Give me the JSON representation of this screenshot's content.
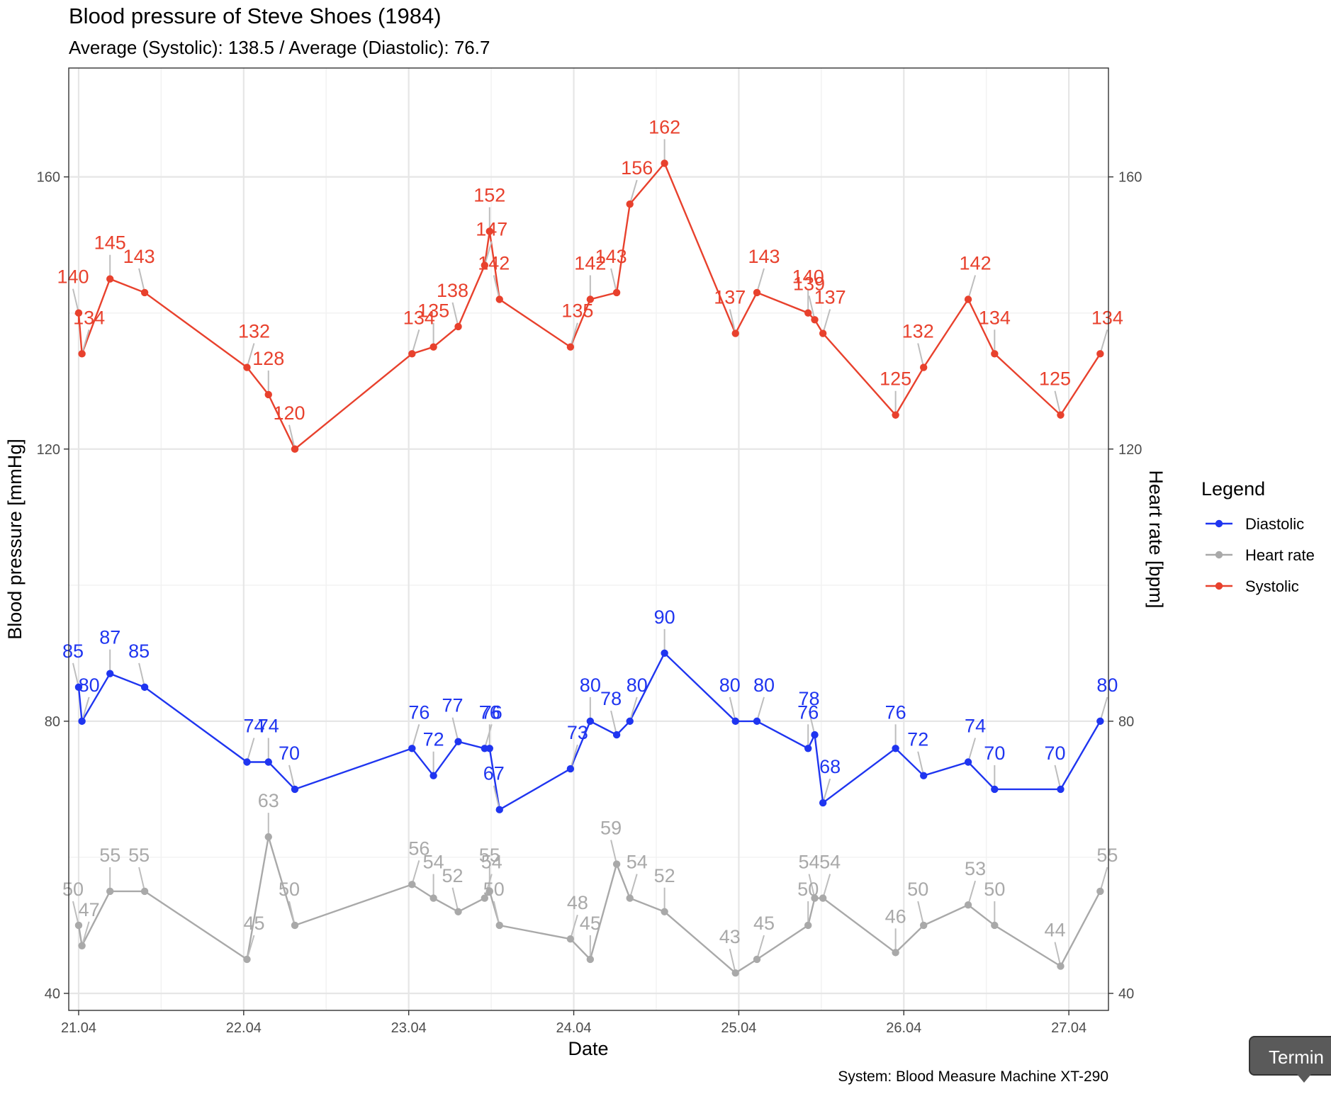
{
  "tooltip": {
    "label": "Termin"
  },
  "chart_data": {
    "type": "line",
    "title": "Blood pressure of Steve Shoes (1984)",
    "subtitle": "Average (Systolic): 138.5  / Average (Diastolic): 76.7",
    "xlabel": "Date",
    "ylabel": "Blood pressure [mmHg]",
    "ylabel_right": "Heart rate [bpm]",
    "caption": "System: Blood Measure Machine XT-290",
    "xlim": [
      20.94,
      27.24
    ],
    "ylim": [
      37.5,
      176
    ],
    "x_ticks": [
      {
        "value": 21,
        "label": "21.04"
      },
      {
        "value": 22,
        "label": "22.04"
      },
      {
        "value": 23,
        "label": "23.04"
      },
      {
        "value": 24,
        "label": "24.04"
      },
      {
        "value": 25,
        "label": "25.04"
      },
      {
        "value": 26,
        "label": "26.04"
      },
      {
        "value": 27,
        "label": "27.04"
      }
    ],
    "y_ticks": [
      40,
      80,
      120,
      160
    ],
    "grid": true,
    "legend": {
      "title": "Legend",
      "position": "right",
      "entries": [
        {
          "name": "Diastolic",
          "color": "#1f35f0"
        },
        {
          "name": "Heart rate",
          "color": "#a9a9a9"
        },
        {
          "name": "Systolic",
          "color": "#e8412d"
        }
      ]
    },
    "x_note": "x values are dates in April 1984 expressed as day of month with fractional time of day",
    "series": [
      {
        "name": "Systolic",
        "color": "#e8412d",
        "points": [
          {
            "x": 21.0,
            "y": 140
          },
          {
            "x": 21.02,
            "y": 134
          },
          {
            "x": 21.19,
            "y": 145
          },
          {
            "x": 21.4,
            "y": 143
          },
          {
            "x": 22.02,
            "y": 132
          },
          {
            "x": 22.15,
            "y": 128
          },
          {
            "x": 22.31,
            "y": 120
          },
          {
            "x": 23.02,
            "y": 134
          },
          {
            "x": 23.15,
            "y": 135
          },
          {
            "x": 23.3,
            "y": 138
          },
          {
            "x": 23.46,
            "y": 147
          },
          {
            "x": 23.49,
            "y": 152
          },
          {
            "x": 23.55,
            "y": 142
          },
          {
            "x": 23.98,
            "y": 135
          },
          {
            "x": 24.1,
            "y": 142
          },
          {
            "x": 24.26,
            "y": 143
          },
          {
            "x": 24.34,
            "y": 156
          },
          {
            "x": 24.55,
            "y": 162
          },
          {
            "x": 24.98,
            "y": 137
          },
          {
            "x": 25.11,
            "y": 143
          },
          {
            "x": 25.42,
            "y": 140
          },
          {
            "x": 25.46,
            "y": 139
          },
          {
            "x": 25.51,
            "y": 137
          },
          {
            "x": 25.95,
            "y": 125
          },
          {
            "x": 26.12,
            "y": 132
          },
          {
            "x": 26.39,
            "y": 142
          },
          {
            "x": 26.55,
            "y": 134
          },
          {
            "x": 26.95,
            "y": 125
          },
          {
            "x": 27.19,
            "y": 134
          }
        ]
      },
      {
        "name": "Diastolic",
        "color": "#1f35f0",
        "points": [
          {
            "x": 21.0,
            "y": 85
          },
          {
            "x": 21.02,
            "y": 80
          },
          {
            "x": 21.19,
            "y": 87
          },
          {
            "x": 21.4,
            "y": 85
          },
          {
            "x": 22.02,
            "y": 74
          },
          {
            "x": 22.15,
            "y": 74
          },
          {
            "x": 22.31,
            "y": 70
          },
          {
            "x": 23.02,
            "y": 76
          },
          {
            "x": 23.15,
            "y": 72
          },
          {
            "x": 23.3,
            "y": 77
          },
          {
            "x": 23.46,
            "y": 76
          },
          {
            "x": 23.49,
            "y": 76
          },
          {
            "x": 23.55,
            "y": 67
          },
          {
            "x": 23.98,
            "y": 73
          },
          {
            "x": 24.1,
            "y": 80
          },
          {
            "x": 24.26,
            "y": 78
          },
          {
            "x": 24.34,
            "y": 80
          },
          {
            "x": 24.55,
            "y": 90
          },
          {
            "x": 24.98,
            "y": 80
          },
          {
            "x": 25.11,
            "y": 80
          },
          {
            "x": 25.42,
            "y": 76
          },
          {
            "x": 25.46,
            "y": 78
          },
          {
            "x": 25.51,
            "y": 68
          },
          {
            "x": 25.95,
            "y": 76
          },
          {
            "x": 26.12,
            "y": 72
          },
          {
            "x": 26.39,
            "y": 74
          },
          {
            "x": 26.55,
            "y": 70
          },
          {
            "x": 26.95,
            "y": 70
          },
          {
            "x": 27.19,
            "y": 80
          }
        ]
      },
      {
        "name": "Heart rate",
        "color": "#a9a9a9",
        "points": [
          {
            "x": 21.0,
            "y": 50
          },
          {
            "x": 21.02,
            "y": 47
          },
          {
            "x": 21.19,
            "y": 55
          },
          {
            "x": 21.4,
            "y": 55
          },
          {
            "x": 22.02,
            "y": 45
          },
          {
            "x": 22.15,
            "y": 63
          },
          {
            "x": 22.31,
            "y": 50
          },
          {
            "x": 23.02,
            "y": 56
          },
          {
            "x": 23.15,
            "y": 54
          },
          {
            "x": 23.3,
            "y": 52
          },
          {
            "x": 23.46,
            "y": 54
          },
          {
            "x": 23.49,
            "y": 55
          },
          {
            "x": 23.55,
            "y": 50
          },
          {
            "x": 23.98,
            "y": 48
          },
          {
            "x": 24.1,
            "y": 45
          },
          {
            "x": 24.26,
            "y": 59
          },
          {
            "x": 24.34,
            "y": 54
          },
          {
            "x": 24.55,
            "y": 52
          },
          {
            "x": 24.98,
            "y": 43
          },
          {
            "x": 25.11,
            "y": 45
          },
          {
            "x": 25.42,
            "y": 50
          },
          {
            "x": 25.46,
            "y": 54
          },
          {
            "x": 25.51,
            "y": 54
          },
          {
            "x": 25.95,
            "y": 46
          },
          {
            "x": 26.12,
            "y": 50
          },
          {
            "x": 26.39,
            "y": 53
          },
          {
            "x": 26.55,
            "y": 50
          },
          {
            "x": 26.95,
            "y": 44
          },
          {
            "x": 27.19,
            "y": 55
          }
        ]
      }
    ]
  }
}
